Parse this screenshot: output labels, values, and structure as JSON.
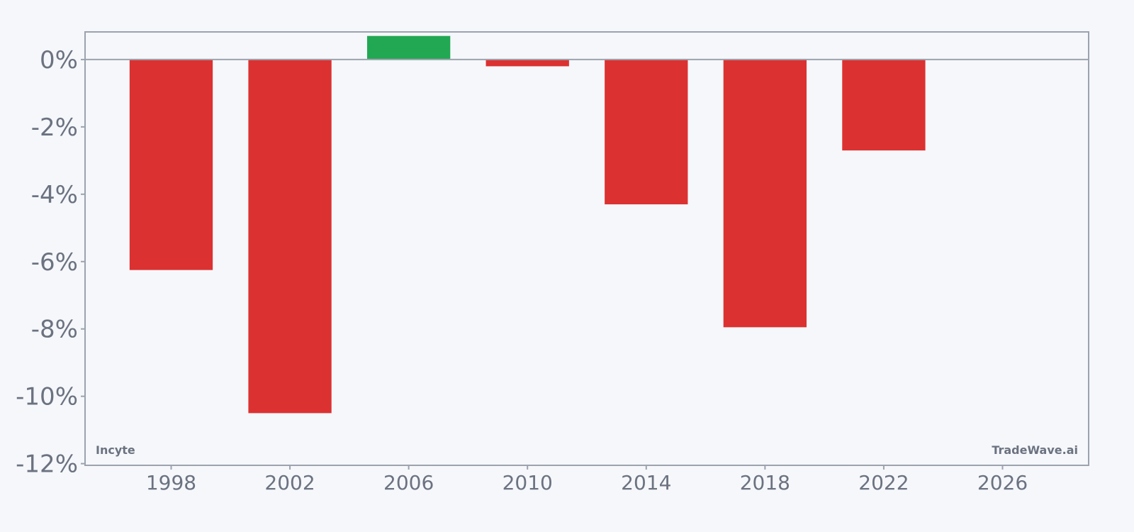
{
  "chart_data": {
    "type": "bar",
    "title": "",
    "xlabel": "",
    "ylabel": "",
    "x": [
      1998,
      2002,
      2006,
      2010,
      2014,
      2018,
      2022
    ],
    "values": [
      -6.25,
      -10.5,
      0.7,
      -0.2,
      -4.3,
      -7.95,
      -2.7
    ],
    "xlim": [
      1995.1,
      2028.9
    ],
    "ylim": [
      -12.05,
      0.82
    ],
    "xticks": [
      1998,
      2002,
      2006,
      2010,
      2014,
      2018,
      2022,
      2026
    ],
    "yticks": [
      0,
      -2,
      -4,
      -6,
      -8,
      -10,
      -12
    ],
    "ytick_labels": [
      "0%",
      "-2%",
      "-4%",
      "-6%",
      "-8%",
      "-10%",
      "-12%"
    ],
    "bar_width_years": 2.8,
    "grid": false,
    "legend": "none",
    "colors": {
      "positive": "#22a853",
      "negative": "#dc3131",
      "axis": "#9ca3af",
      "text": "#6b7280"
    }
  },
  "annotations": {
    "company": "Incyte",
    "brand": "TradeWave.ai"
  }
}
